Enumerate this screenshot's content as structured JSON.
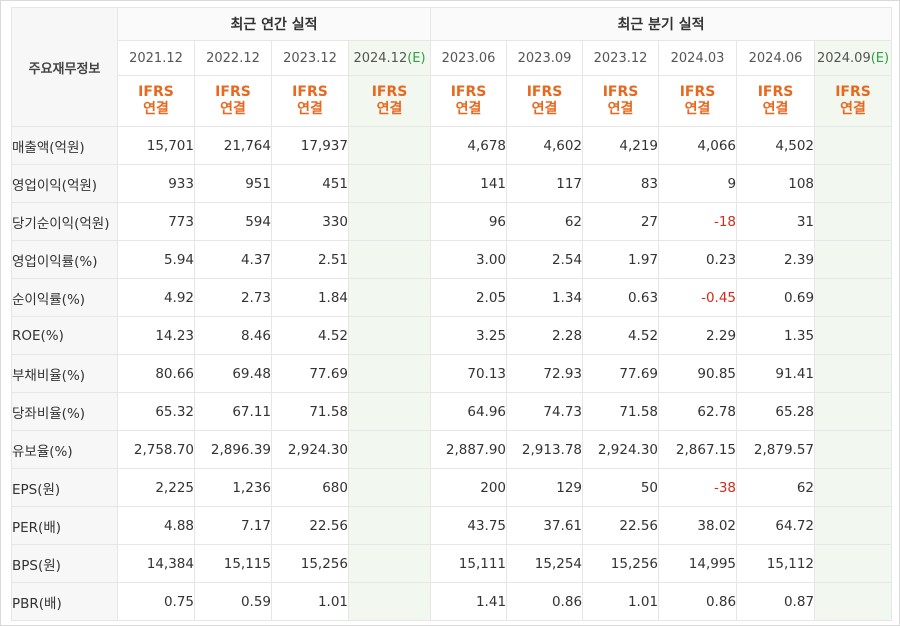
{
  "table": {
    "corner_label": "주요재무정보",
    "groups": {
      "annual": "최근 연간 실적",
      "quarterly": "최근 분기 실적"
    },
    "annual_periods": [
      "2021.12",
      "2022.12",
      "2023.12",
      "2024.12"
    ],
    "quarter_periods": [
      "2023.06",
      "2023.09",
      "2023.12",
      "2024.03",
      "2024.06",
      "2024.09"
    ],
    "estimate_marker": "(E)",
    "basis_line1": "IFRS",
    "basis_line2": "연결",
    "rows": [
      {
        "label": "매출액(억원)",
        "annual": [
          "15,701",
          "21,764",
          "17,937",
          ""
        ],
        "quarter": [
          "4,678",
          "4,602",
          "4,219",
          "4,066",
          "4,502",
          ""
        ]
      },
      {
        "label": "영업이익(억원)",
        "annual": [
          "933",
          "951",
          "451",
          ""
        ],
        "quarter": [
          "141",
          "117",
          "83",
          "9",
          "108",
          ""
        ]
      },
      {
        "label": "당기순이익(억원)",
        "annual": [
          "773",
          "594",
          "330",
          ""
        ],
        "quarter": [
          "96",
          "62",
          "27",
          "-18",
          "31",
          ""
        ]
      },
      {
        "label": "영업이익률(%)",
        "annual": [
          "5.94",
          "4.37",
          "2.51",
          ""
        ],
        "quarter": [
          "3.00",
          "2.54",
          "1.97",
          "0.23",
          "2.39",
          ""
        ]
      },
      {
        "label": "순이익률(%)",
        "annual": [
          "4.92",
          "2.73",
          "1.84",
          ""
        ],
        "quarter": [
          "2.05",
          "1.34",
          "0.63",
          "-0.45",
          "0.69",
          ""
        ]
      },
      {
        "label": "ROE(%)",
        "annual": [
          "14.23",
          "8.46",
          "4.52",
          ""
        ],
        "quarter": [
          "3.25",
          "2.28",
          "4.52",
          "2.29",
          "1.35",
          ""
        ]
      },
      {
        "label": "부채비율(%)",
        "annual": [
          "80.66",
          "69.48",
          "77.69",
          ""
        ],
        "quarter": [
          "70.13",
          "72.93",
          "77.69",
          "90.85",
          "91.41",
          ""
        ]
      },
      {
        "label": "당좌비율(%)",
        "annual": [
          "65.32",
          "67.11",
          "71.58",
          ""
        ],
        "quarter": [
          "64.96",
          "74.73",
          "71.58",
          "62.78",
          "65.28",
          ""
        ]
      },
      {
        "label": "유보율(%)",
        "annual": [
          "2,758.70",
          "2,896.39",
          "2,924.30",
          ""
        ],
        "quarter": [
          "2,887.90",
          "2,913.78",
          "2,924.30",
          "2,867.15",
          "2,879.57",
          ""
        ]
      },
      {
        "label": "EPS(원)",
        "annual": [
          "2,225",
          "1,236",
          "680",
          ""
        ],
        "quarter": [
          "200",
          "129",
          "50",
          "-38",
          "62",
          ""
        ]
      },
      {
        "label": "PER(배)",
        "annual": [
          "4.88",
          "7.17",
          "22.56",
          ""
        ],
        "quarter": [
          "43.75",
          "37.61",
          "22.56",
          "38.02",
          "64.72",
          ""
        ]
      },
      {
        "label": "BPS(원)",
        "annual": [
          "14,384",
          "15,115",
          "15,256",
          ""
        ],
        "quarter": [
          "15,111",
          "15,254",
          "15,256",
          "14,995",
          "15,112",
          ""
        ]
      },
      {
        "label": "PBR(배)",
        "annual": [
          "0.75",
          "0.59",
          "1.01",
          ""
        ],
        "quarter": [
          "1.41",
          "0.86",
          "1.01",
          "0.86",
          "0.87",
          ""
        ]
      }
    ],
    "colors": {
      "negative": "#d52b1e",
      "basis": "#e8681f",
      "estimate": "#2ea043",
      "estimate_bg": "#f2f8ef"
    }
  }
}
